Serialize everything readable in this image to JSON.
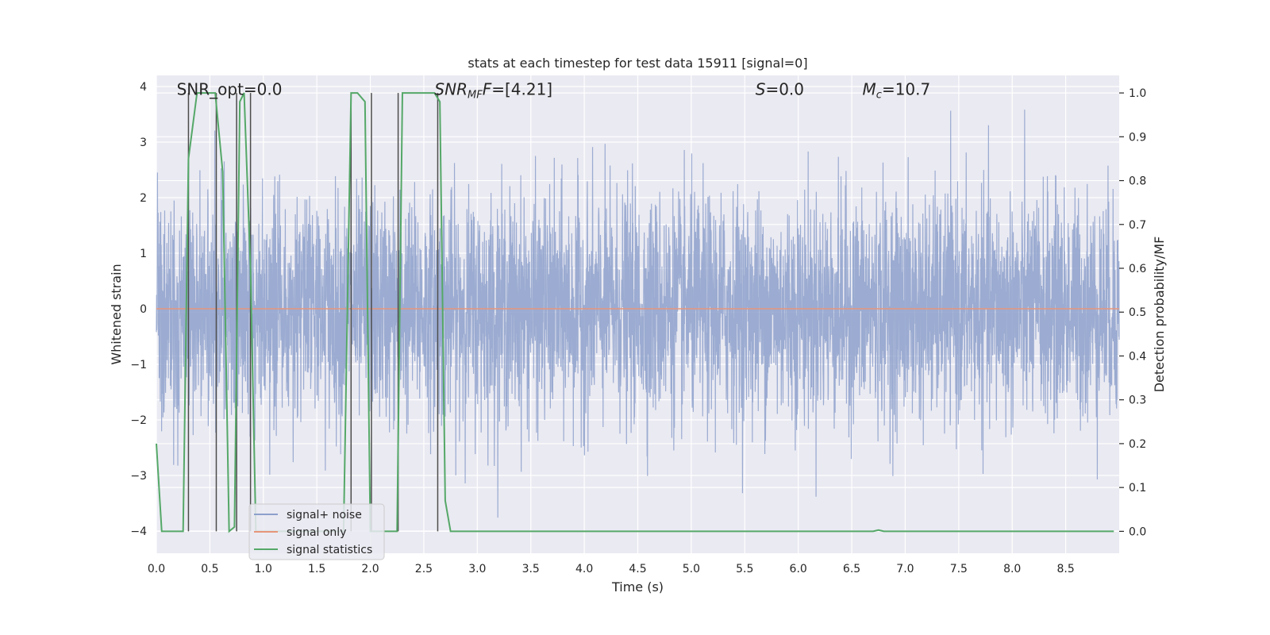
{
  "chart_data": {
    "type": "line",
    "title": "stats at each timestep for test data 15911 [signal=0]",
    "xlabel": "Time (s)",
    "ylabel_left": "Whitened strain",
    "ylabel_right": "Detection probability/MF",
    "xlim": [
      0.0,
      9.0
    ],
    "ylim_left": [
      -4.4,
      4.2
    ],
    "ylim_right": [
      -0.05,
      1.04
    ],
    "xticks": [
      "0.0",
      "0.5",
      "1.0",
      "1.5",
      "2.0",
      "2.5",
      "3.0",
      "3.5",
      "4.0",
      "4.5",
      "5.0",
      "5.5",
      "6.0",
      "6.5",
      "7.0",
      "7.5",
      "8.0",
      "8.5"
    ],
    "yticks_left": [
      "4",
      "3",
      "2",
      "1",
      "0",
      "−1",
      "−2",
      "−3",
      "−4"
    ],
    "yticks_right": [
      "1.0",
      "0.9",
      "0.8",
      "0.7",
      "0.6",
      "0.5",
      "0.4",
      "0.3",
      "0.2",
      "0.1",
      "0.0"
    ],
    "grid": true,
    "legend_location": "lower-left",
    "annotations": {
      "snr_opt": "SNR_opt=0.0",
      "snr_mf_main": "SNR",
      "snr_mf_sub": "MF",
      "snr_mf_value": "=[4.21]",
      "s_symbol": "S",
      "s_value": "=0.0",
      "mc_main": "M",
      "mc_sub": "c",
      "mc_value": "=10.7"
    },
    "series": [
      {
        "name": "signal+ noise",
        "color": "#8da0cb",
        "axis": "left",
        "description_stats": {
          "std": 1.0,
          "approx_max": 3.7,
          "approx_min": -4.0
        }
      },
      {
        "name": "signal only",
        "color": "#e7967a",
        "axis": "left",
        "x": [
          0.0,
          9.0
        ],
        "y": [
          0.0,
          0.0
        ]
      },
      {
        "name": "signal statistics",
        "color": "#55a868",
        "axis": "right",
        "x": [
          0.0,
          0.05,
          0.25,
          0.3,
          0.38,
          0.55,
          0.62,
          0.68,
          0.73,
          0.78,
          0.82,
          0.88,
          0.93,
          1.0,
          1.75,
          1.82,
          1.88,
          1.95,
          2.0,
          2.05,
          2.25,
          2.3,
          2.35,
          2.6,
          2.65,
          2.7,
          2.75,
          6.7,
          6.75,
          6.8,
          8.95
        ],
        "y": [
          0.2,
          0.0,
          0.0,
          0.85,
          1.0,
          1.0,
          0.82,
          0.0,
          0.01,
          0.98,
          1.0,
          0.6,
          0.0,
          0.0,
          0.0,
          1.0,
          1.0,
          0.98,
          0.0,
          0.0,
          0.0,
          1.0,
          1.0,
          1.0,
          0.98,
          0.07,
          0.0,
          0.0,
          0.003,
          0.0,
          0.0
        ]
      }
    ],
    "vertical_markers": {
      "color": "#4c4c4c",
      "x": [
        0.3,
        0.56,
        0.75,
        0.88,
        1.82,
        2.01,
        2.26,
        2.63
      ],
      "y_range_right": [
        0.0,
        1.0
      ]
    }
  }
}
